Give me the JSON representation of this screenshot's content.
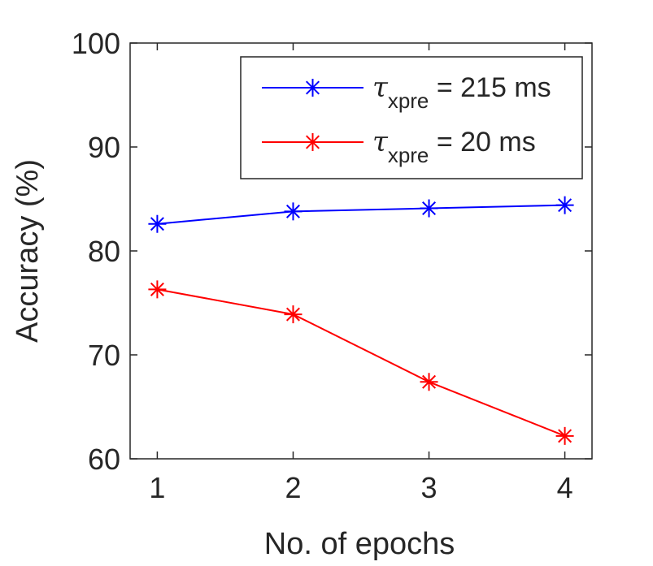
{
  "chart_data": {
    "type": "line",
    "title": "",
    "xlabel": "No. of epochs",
    "ylabel": "Accuracy (%)",
    "xlim": [
      0.8,
      4.2
    ],
    "ylim": [
      60,
      100
    ],
    "xticks": [
      "1",
      "2",
      "3",
      "4"
    ],
    "yticks": [
      "60",
      "70",
      "80",
      "90",
      "100"
    ],
    "x": [
      1,
      2,
      3,
      4
    ],
    "series": [
      {
        "name": "τxpre = 215 ms",
        "legend_symbol": "τ",
        "legend_subscript": "xpre",
        "legend_suffix": " = 215 ms",
        "color": "#0000ff",
        "marker": "asterisk",
        "values": [
          82.6,
          83.8,
          84.1,
          84.4
        ]
      },
      {
        "name": "τxpre = 20 ms",
        "legend_symbol": "τ",
        "legend_subscript": "xpre",
        "legend_suffix": " = 20 ms",
        "color": "#ff0000",
        "marker": "asterisk",
        "values": [
          76.3,
          73.9,
          67.4,
          62.2
        ]
      }
    ],
    "grid": false,
    "legend_position": "top-right",
    "box": true
  }
}
